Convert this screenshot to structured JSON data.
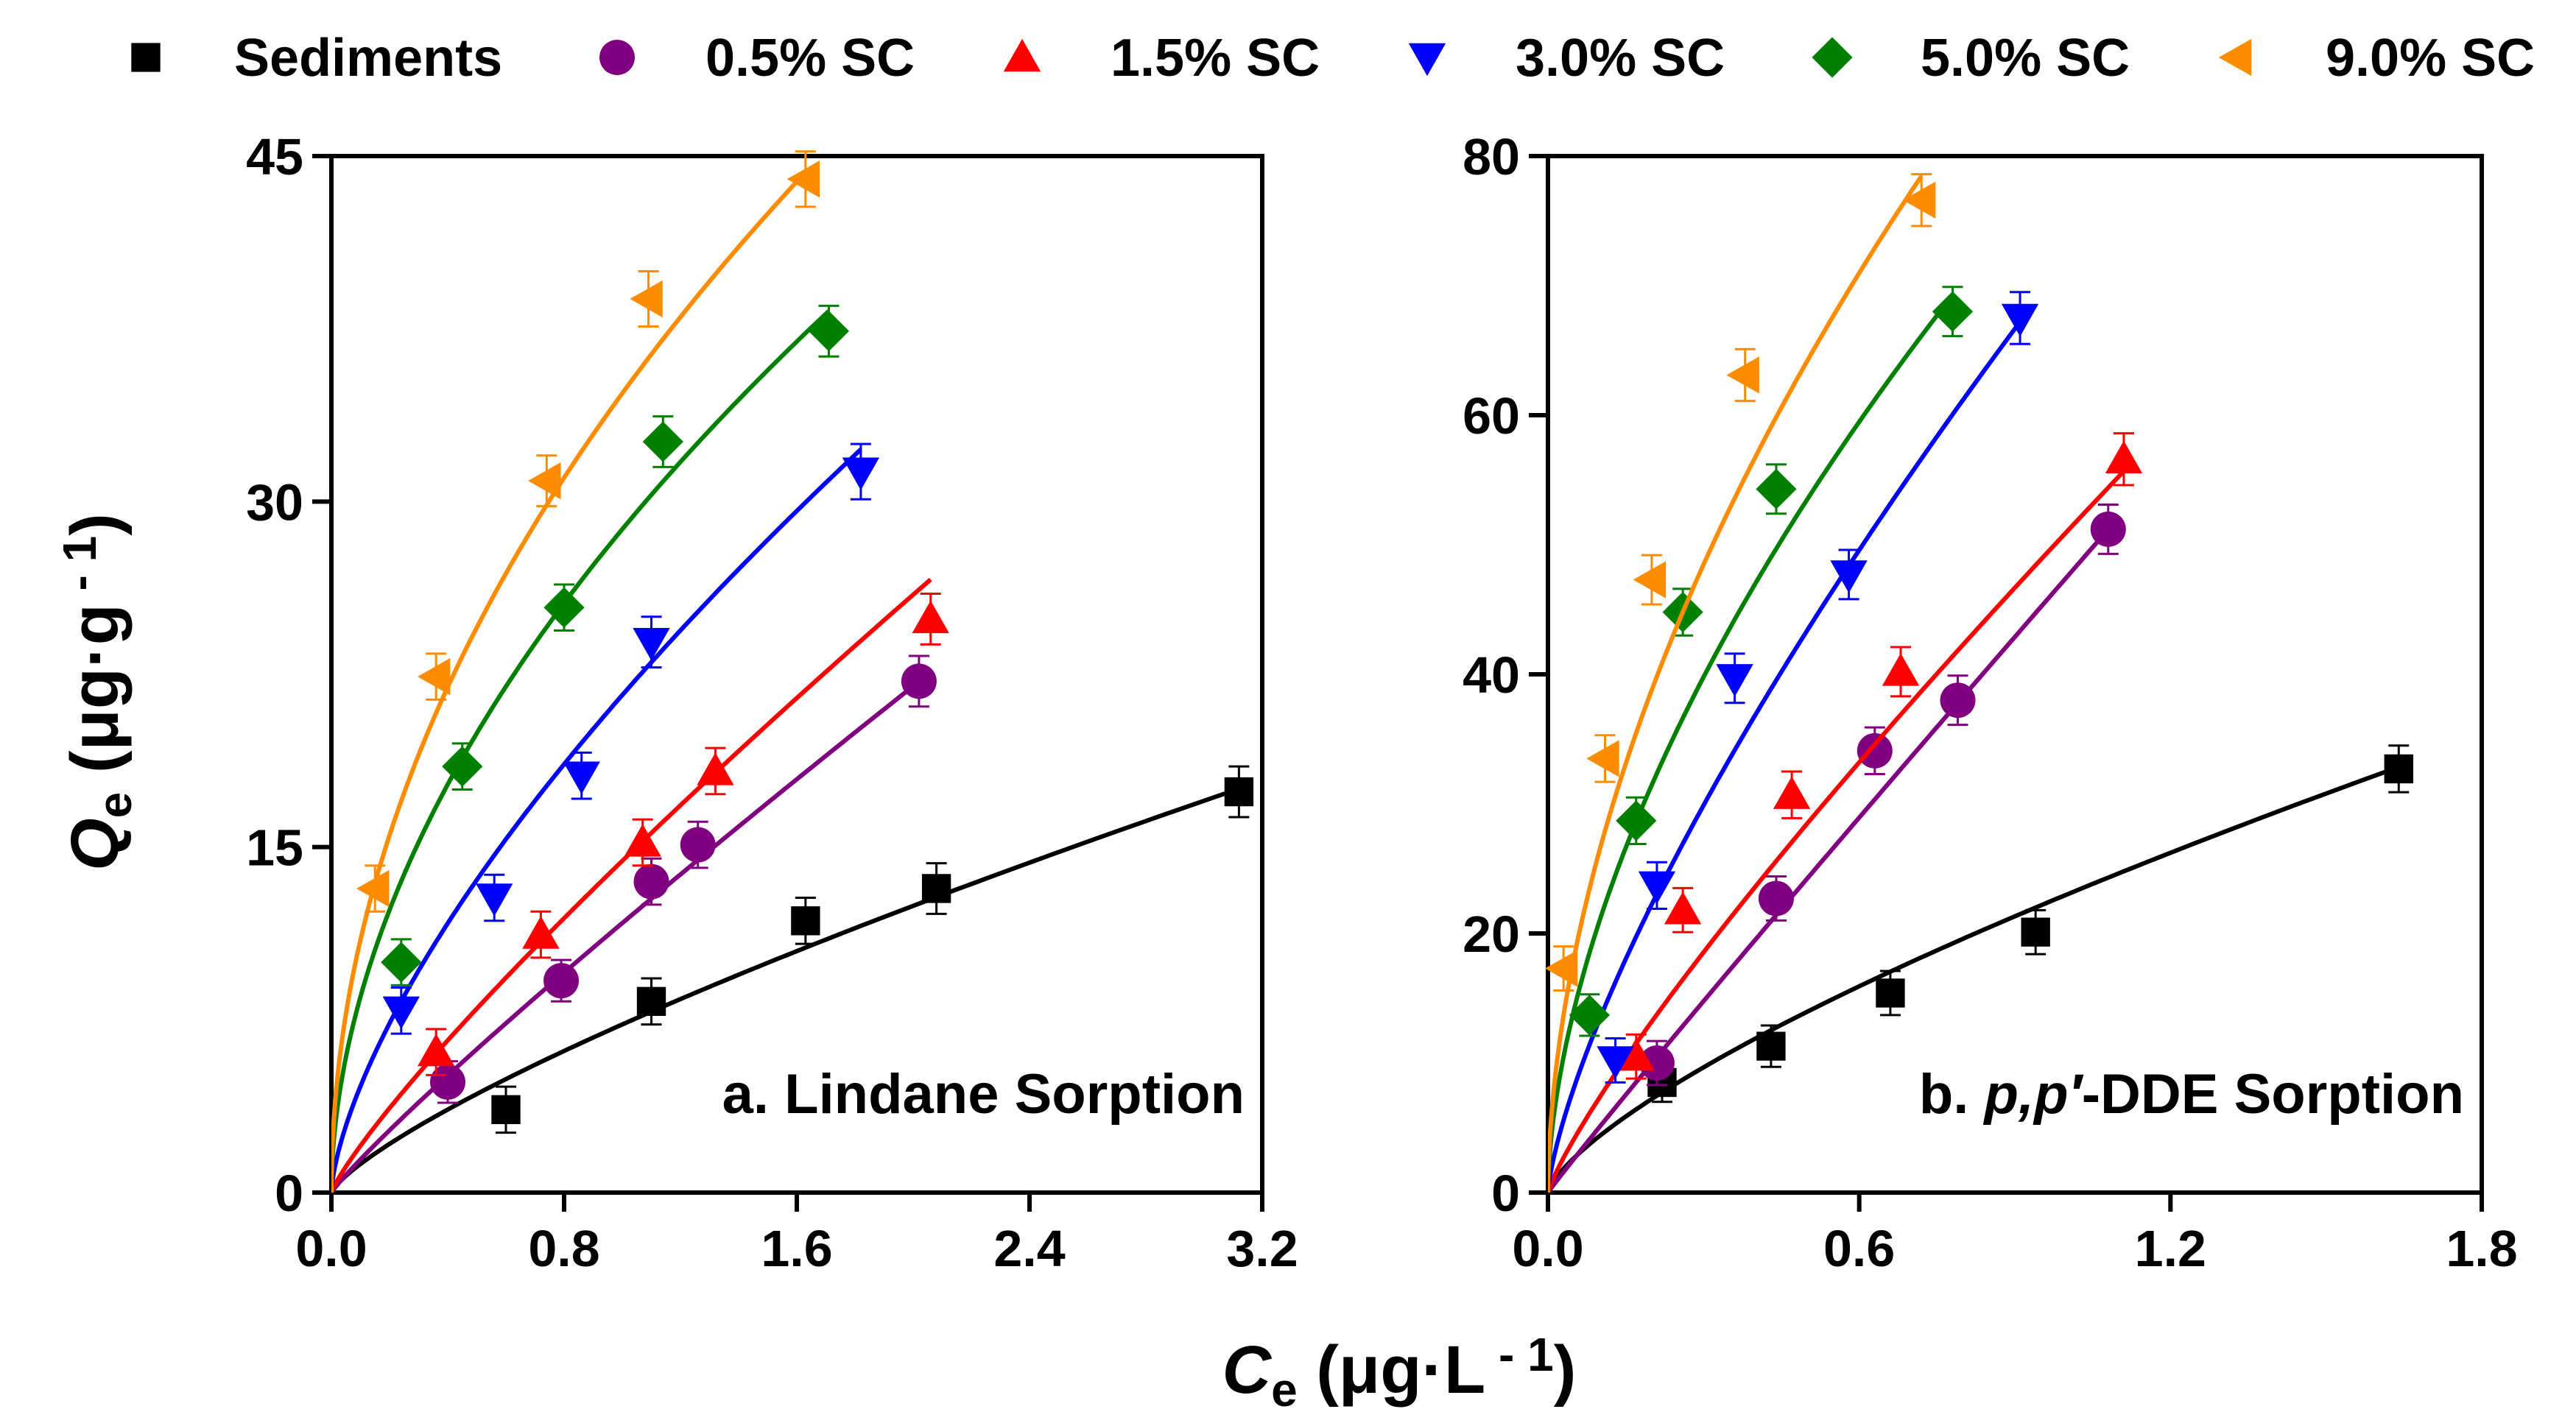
{
  "legend": [
    {
      "label": "Sediments",
      "color": "#000000",
      "marker": "square-icon"
    },
    {
      "label": "0.5% SC",
      "color": "#800080",
      "marker": "circle-icon"
    },
    {
      "label": "1.5% SC",
      "color": "#ff0000",
      "marker": "triangle-up-icon"
    },
    {
      "label": "3.0% SC",
      "color": "#0000ff",
      "marker": "triangle-down-icon"
    },
    {
      "label": "5.0% SC",
      "color": "#008000",
      "marker": "diamond-icon"
    },
    {
      "label": "9.0% SC",
      "color": "#ff8c00",
      "marker": "triangle-left-icon"
    }
  ],
  "axis_labels": {
    "y_main": "Q",
    "y_sub": "e",
    "y_unit": " (μg·g",
    "y_sup": " - 1",
    "y_close": ")",
    "x_main": "C",
    "x_sub": "e",
    "x_unit": " (μg·L",
    "x_sup": " - 1",
    "x_close": ")"
  },
  "chart_data": [
    {
      "type": "scatter",
      "title": "a. Lindane Sorption",
      "title_prefix": "a. Lindane Sorption",
      "title_italic": "",
      "title_suffix": "",
      "xlabel": "Ce (μg·L - 1)",
      "ylabel": "Qe (μg·g - 1)",
      "xlim": [
        0,
        3.2
      ],
      "ylim": [
        0,
        45
      ],
      "xticks": [
        "0.0",
        "0.8",
        "1.6",
        "2.4",
        "3.2"
      ],
      "yticks": [
        "0",
        "15",
        "30",
        "45"
      ],
      "series": [
        {
          "name": "Sediments",
          "x": [
            0.6,
            1.1,
            1.63,
            2.08,
            3.12
          ],
          "y": [
            3.6,
            8.3,
            11.8,
            13.2,
            17.4
          ],
          "err": [
            1.0,
            1.0,
            1.0,
            1.1,
            1.1
          ],
          "fit": {
            "K": 7.3,
            "n": 0.77
          }
        },
        {
          "name": "0.5% SC",
          "x": [
            0.4,
            0.79,
            1.1,
            1.26,
            2.02
          ],
          "y": [
            4.8,
            9.2,
            13.5,
            15.1,
            22.2
          ],
          "err": [
            0.9,
            0.9,
            1.0,
            1.0,
            1.1
          ],
          "fit": {
            "K": 11.7,
            "n": 0.91
          }
        },
        {
          "name": "1.5% SC",
          "x": [
            0.36,
            0.72,
            1.07,
            1.32,
            2.06
          ],
          "y": [
            6.1,
            11.2,
            15.2,
            18.3,
            24.9
          ],
          "err": [
            1.0,
            1.0,
            1.0,
            1.0,
            1.1
          ],
          "fit": {
            "K": 14.4,
            "n": 0.85
          }
        },
        {
          "name": "3.0% SC",
          "x": [
            0.24,
            0.56,
            0.86,
            1.1,
            1.82
          ],
          "y": [
            7.9,
            12.8,
            18.1,
            23.9,
            31.3
          ],
          "err": [
            1.0,
            1.0,
            1.0,
            1.1,
            1.2
          ],
          "fit": {
            "K": 21.6,
            "n": 0.67
          }
        },
        {
          "name": "5.0% SC",
          "x": [
            0.24,
            0.45,
            0.8,
            1.14,
            1.71
          ],
          "y": [
            10.0,
            18.5,
            25.4,
            32.6,
            37.4
          ],
          "err": [
            1.0,
            1.0,
            1.0,
            1.1,
            1.1
          ],
          "fit": {
            "K": 28.8,
            "n": 0.53
          }
        },
        {
          "name": "9.0% SC",
          "x": [
            0.15,
            0.36,
            0.74,
            1.09,
            1.63
          ],
          "y": [
            13.2,
            22.4,
            30.9,
            38.8,
            44.0
          ],
          "err": [
            1.0,
            1.0,
            1.1,
            1.2,
            1.2
          ],
          "fit": {
            "K": 34.7,
            "n": 0.5
          }
        }
      ]
    },
    {
      "type": "scatter",
      "title": "b. p,p′-DDE Sorption",
      "title_prefix": "b. ",
      "title_italic": "p,p′",
      "title_suffix": "-DDE Sorption",
      "xlabel": "Ce (μg·L - 1)",
      "ylabel": "Qe (μg·g - 1)",
      "xlim": [
        0,
        1.8
      ],
      "ylim": [
        0,
        80
      ],
      "xticks": [
        "0.0",
        "0.6",
        "1.2",
        "1.8"
      ],
      "yticks": [
        "0",
        "20",
        "40",
        "60",
        "80"
      ],
      "series": [
        {
          "name": "Sediments",
          "x": [
            0.22,
            0.43,
            0.66,
            0.94,
            1.64
          ],
          "y": [
            8.5,
            11.3,
            15.4,
            20.1,
            32.7
          ],
          "err": [
            1.5,
            1.6,
            1.7,
            1.7,
            1.8
          ],
          "fit": {
            "K": 23.0,
            "n": 0.72
          }
        },
        {
          "name": "0.5% SC",
          "x": [
            0.21,
            0.44,
            0.63,
            0.79,
            1.08
          ],
          "y": [
            10.0,
            22.7,
            34.1,
            38.0,
            51.2
          ],
          "err": [
            1.7,
            1.7,
            1.8,
            1.9,
            1.9
          ],
          "fit": {
            "K": 47.5,
            "n": 0.97
          }
        },
        {
          "name": "1.5% SC",
          "x": [
            0.17,
            0.26,
            0.47,
            0.68,
            1.11
          ],
          "y": [
            10.5,
            21.8,
            30.7,
            40.2,
            56.6
          ],
          "err": [
            1.7,
            1.7,
            1.8,
            1.9,
            2.0
          ],
          "fit": {
            "K": 51.0,
            "n": 0.84
          }
        },
        {
          "name": "3.0% SC",
          "x": [
            0.13,
            0.21,
            0.36,
            0.58,
            0.91
          ],
          "y": [
            10.2,
            23.7,
            39.7,
            47.7,
            67.5
          ],
          "err": [
            1.7,
            1.8,
            1.9,
            1.9,
            2.0
          ],
          "fit": {
            "K": 72.0,
            "n": 0.73
          }
        },
        {
          "name": "5.0% SC",
          "x": [
            0.08,
            0.17,
            0.26,
            0.44,
            0.78
          ],
          "y": [
            13.7,
            28.7,
            44.8,
            54.3,
            68.0
          ],
          "err": [
            1.6,
            1.8,
            1.8,
            1.9,
            1.9
          ],
          "fit": {
            "K": 80.0,
            "n": 0.58
          }
        },
        {
          "name": "9.0% SC",
          "x": [
            0.03,
            0.11,
            0.2,
            0.38,
            0.72
          ],
          "y": [
            17.3,
            33.5,
            47.3,
            63.1,
            76.6
          ],
          "err": [
            1.7,
            1.8,
            1.9,
            2.0,
            2.0
          ],
          "fit": {
            "K": 94.0,
            "n": 0.55
          }
        }
      ]
    }
  ]
}
